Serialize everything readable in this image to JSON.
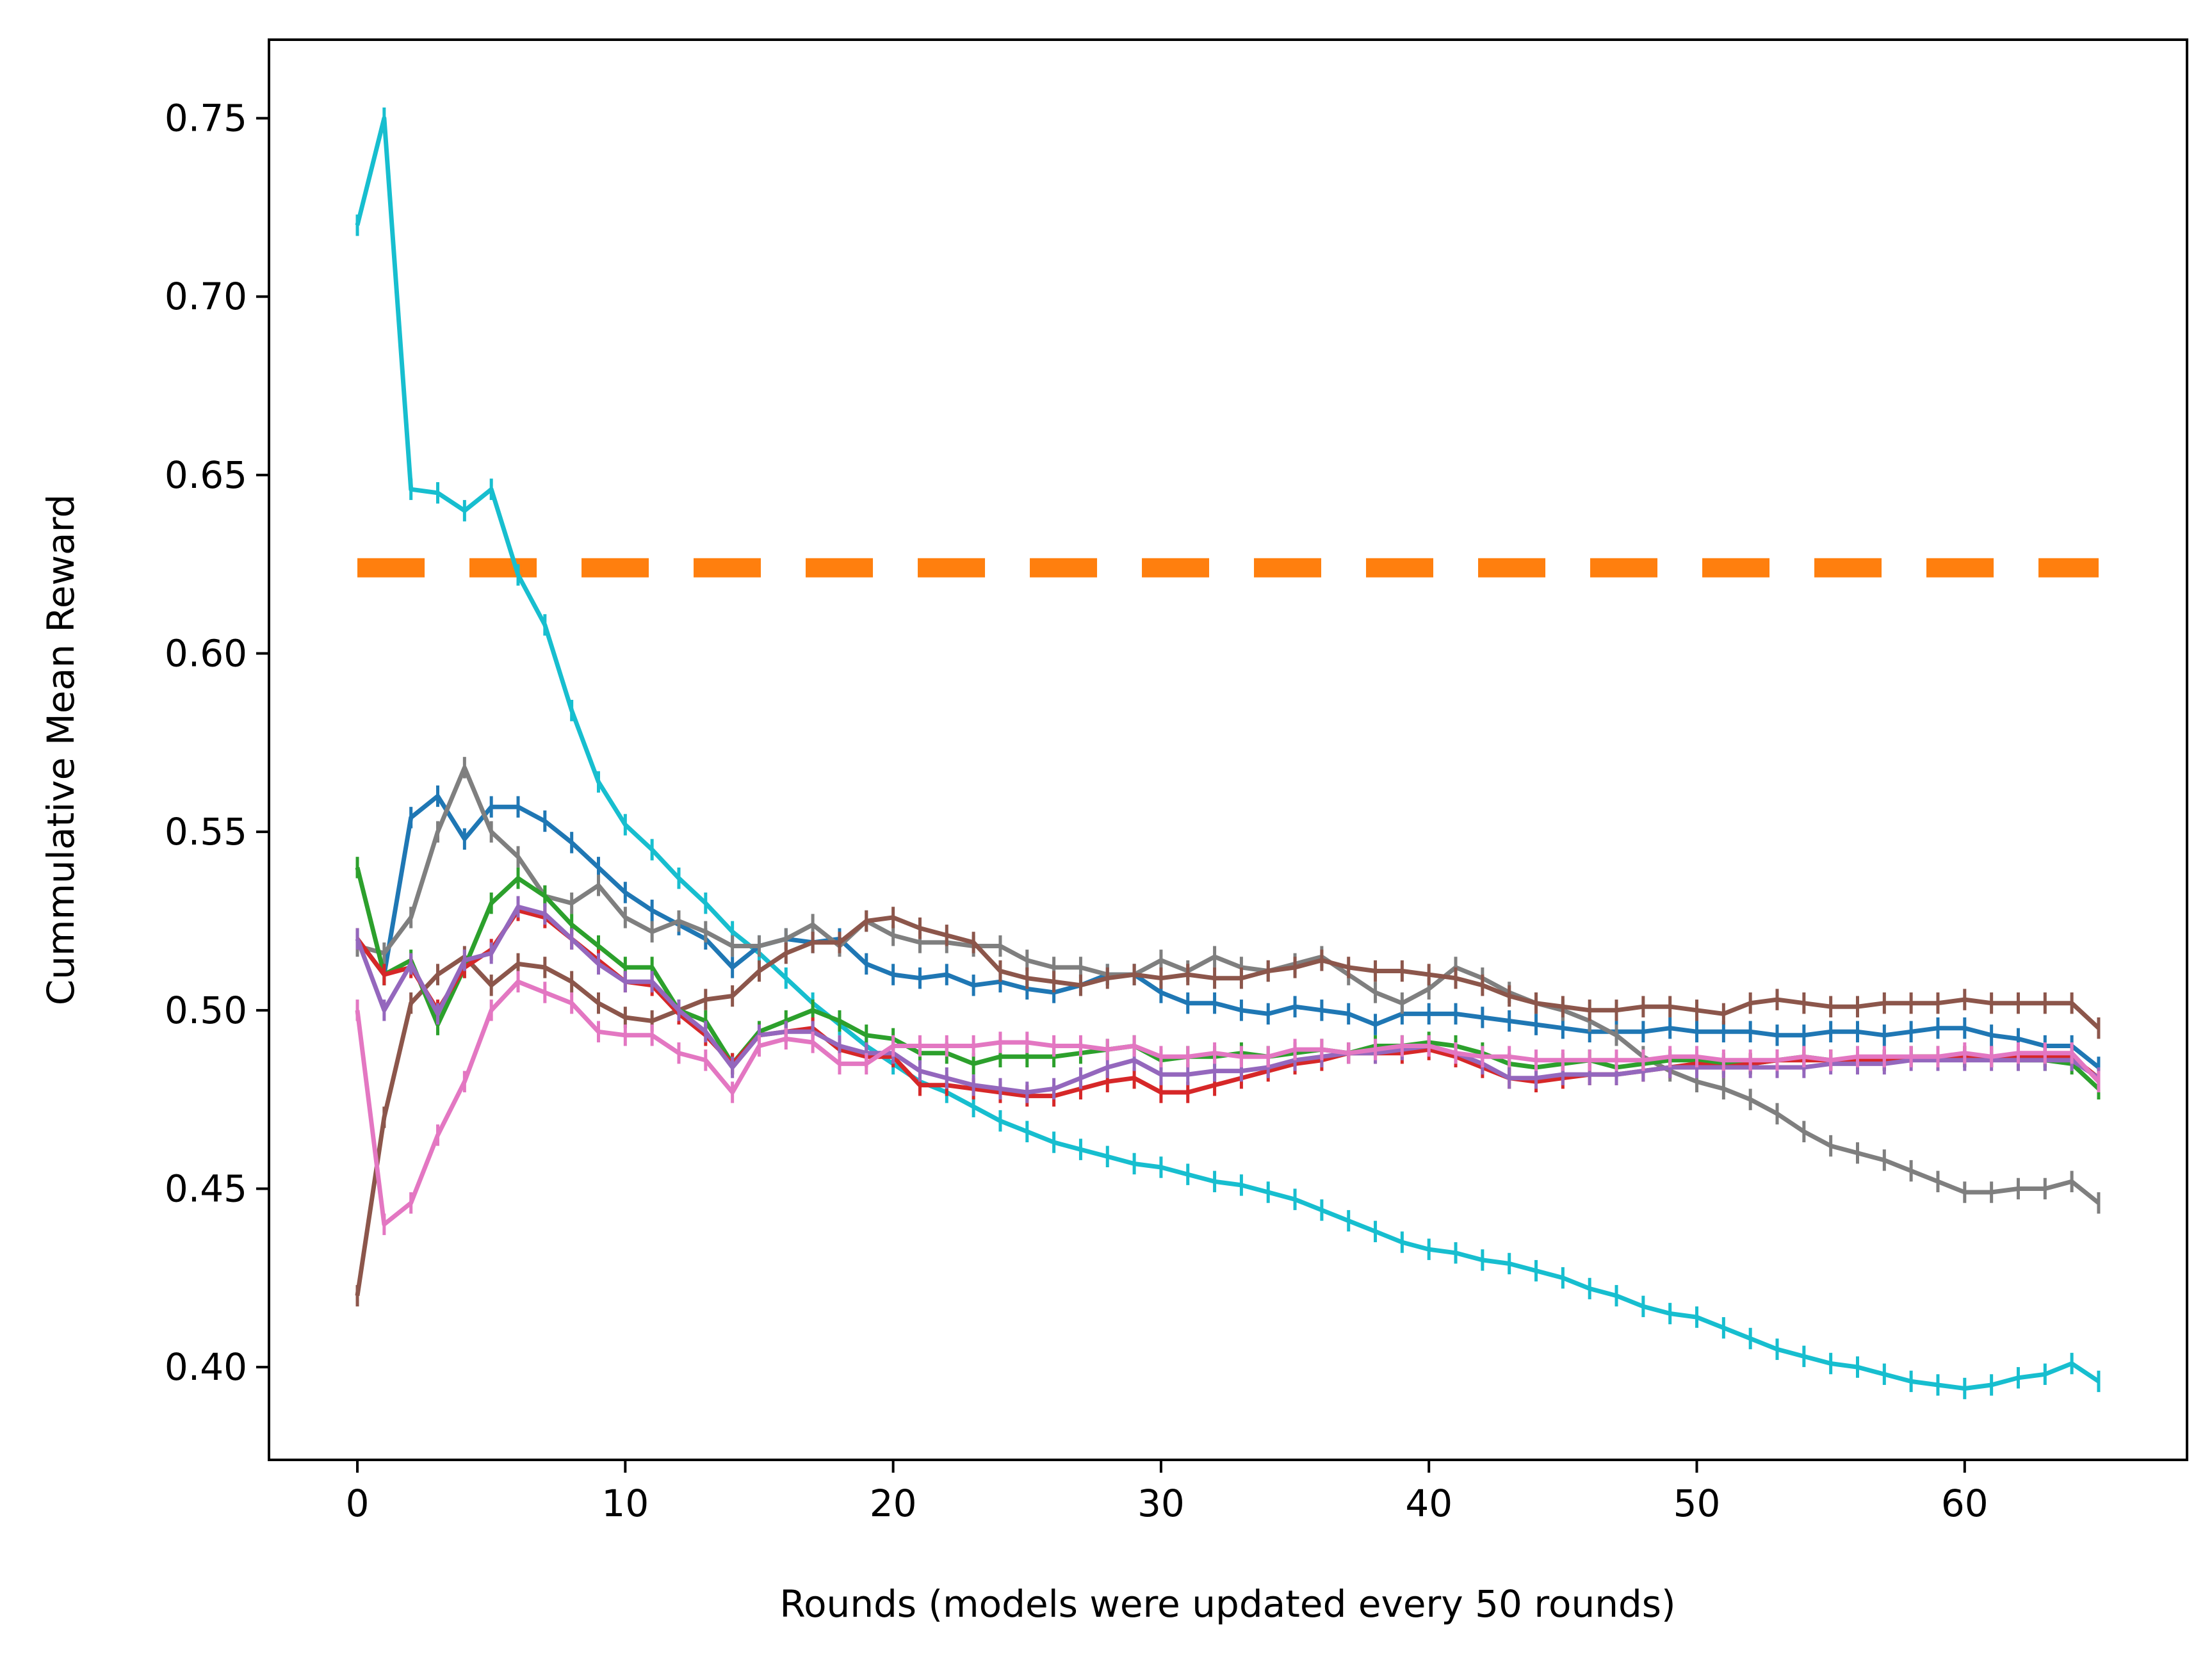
{
  "chart_data": {
    "type": "line",
    "xlabel": "Rounds (models were updated every 50 rounds)",
    "ylabel": "Cummulative Mean Reward",
    "xlim": [
      -3.3,
      68.3
    ],
    "ylim": [
      0.374,
      0.772
    ],
    "xticks": [
      0,
      10,
      20,
      30,
      40,
      50,
      60
    ],
    "yticks": [
      0.4,
      0.45,
      0.5,
      0.55,
      0.6,
      0.65,
      0.7,
      0.75
    ],
    "xtick_labels": [
      "0",
      "10",
      "20",
      "30",
      "40",
      "50",
      "60"
    ],
    "ytick_labels": [
      "0.40",
      "0.45",
      "0.50",
      "0.55",
      "0.60",
      "0.65",
      "0.70",
      "0.75"
    ],
    "grid": false,
    "error_bar": 0.003,
    "reference_line": {
      "y": 0.624,
      "x_range": [
        0,
        65
      ],
      "color": "#ff7f0e",
      "style": "dashed"
    },
    "series": [
      {
        "color": "#17becf",
        "values": [
          0.72,
          0.75,
          0.646,
          0.645,
          0.64,
          0.646,
          0.622,
          0.608,
          0.584,
          0.564,
          0.552,
          0.545,
          0.537,
          0.53,
          0.522,
          0.516,
          0.509,
          0.502,
          0.496,
          0.49,
          0.485,
          0.48,
          0.477,
          0.473,
          0.469,
          0.466,
          0.463,
          0.461,
          0.459,
          0.457,
          0.456,
          0.454,
          0.452,
          0.451,
          0.449,
          0.447,
          0.444,
          0.441,
          0.438,
          0.435,
          0.433,
          0.432,
          0.43,
          0.429,
          0.427,
          0.425,
          0.422,
          0.42,
          0.417,
          0.415,
          0.414,
          0.411,
          0.408,
          0.405,
          0.403,
          0.401,
          0.4,
          0.398,
          0.396,
          0.395,
          0.394,
          0.395,
          0.397,
          0.398,
          0.401,
          0.396
        ]
      },
      {
        "color": "#1f77b4",
        "values": [
          0.52,
          0.51,
          0.554,
          0.56,
          0.548,
          0.557,
          0.557,
          0.553,
          0.547,
          0.54,
          0.533,
          0.528,
          0.524,
          0.52,
          0.512,
          0.518,
          0.52,
          0.519,
          0.52,
          0.513,
          0.51,
          0.509,
          0.51,
          0.507,
          0.508,
          0.506,
          0.505,
          0.507,
          0.51,
          0.51,
          0.505,
          0.502,
          0.502,
          0.5,
          0.499,
          0.501,
          0.5,
          0.499,
          0.496,
          0.499,
          0.499,
          0.499,
          0.498,
          0.497,
          0.496,
          0.495,
          0.494,
          0.494,
          0.494,
          0.495,
          0.494,
          0.494,
          0.494,
          0.493,
          0.493,
          0.494,
          0.494,
          0.493,
          0.494,
          0.495,
          0.495,
          0.493,
          0.492,
          0.49,
          0.49,
          0.484
        ]
      },
      {
        "color": "#7f7f7f",
        "values": [
          0.518,
          0.516,
          0.526,
          0.55,
          0.568,
          0.55,
          0.543,
          0.532,
          0.53,
          0.535,
          0.526,
          0.522,
          0.525,
          0.522,
          0.518,
          0.518,
          0.52,
          0.524,
          0.518,
          0.525,
          0.521,
          0.519,
          0.519,
          0.518,
          0.518,
          0.514,
          0.512,
          0.512,
          0.51,
          0.51,
          0.514,
          0.511,
          0.515,
          0.512,
          0.511,
          0.513,
          0.515,
          0.51,
          0.505,
          0.502,
          0.506,
          0.512,
          0.509,
          0.505,
          0.502,
          0.5,
          0.497,
          0.493,
          0.487,
          0.483,
          0.48,
          0.478,
          0.475,
          0.471,
          0.466,
          0.462,
          0.46,
          0.458,
          0.455,
          0.452,
          0.449,
          0.449,
          0.45,
          0.45,
          0.452,
          0.446
        ]
      },
      {
        "color": "#8c564b",
        "values": [
          0.42,
          0.47,
          0.502,
          0.51,
          0.515,
          0.507,
          0.513,
          0.512,
          0.508,
          0.502,
          0.498,
          0.497,
          0.5,
          0.503,
          0.504,
          0.511,
          0.516,
          0.519,
          0.519,
          0.525,
          0.526,
          0.523,
          0.521,
          0.519,
          0.511,
          0.509,
          0.508,
          0.507,
          0.509,
          0.51,
          0.509,
          0.51,
          0.509,
          0.509,
          0.511,
          0.512,
          0.514,
          0.512,
          0.511,
          0.511,
          0.51,
          0.509,
          0.507,
          0.504,
          0.502,
          0.501,
          0.5,
          0.5,
          0.501,
          0.501,
          0.5,
          0.499,
          0.502,
          0.503,
          0.502,
          0.501,
          0.501,
          0.502,
          0.502,
          0.502,
          0.503,
          0.502,
          0.502,
          0.502,
          0.502,
          0.495
        ]
      },
      {
        "color": "#2ca02c",
        "values": [
          0.54,
          0.51,
          0.514,
          0.496,
          0.512,
          0.53,
          0.537,
          0.532,
          0.524,
          0.518,
          0.512,
          0.512,
          0.5,
          0.497,
          0.485,
          0.494,
          0.497,
          0.5,
          0.497,
          0.493,
          0.492,
          0.488,
          0.488,
          0.485,
          0.487,
          0.487,
          0.487,
          0.488,
          0.489,
          0.49,
          0.486,
          0.487,
          0.487,
          0.488,
          0.487,
          0.488,
          0.489,
          0.488,
          0.49,
          0.49,
          0.491,
          0.49,
          0.488,
          0.485,
          0.484,
          0.485,
          0.486,
          0.484,
          0.485,
          0.486,
          0.486,
          0.485,
          0.485,
          0.486,
          0.487,
          0.486,
          0.486,
          0.486,
          0.487,
          0.487,
          0.487,
          0.487,
          0.486,
          0.486,
          0.485,
          0.478
        ]
      },
      {
        "color": "#d62728",
        "values": [
          0.52,
          0.51,
          0.512,
          0.5,
          0.512,
          0.517,
          0.528,
          0.526,
          0.52,
          0.514,
          0.508,
          0.507,
          0.499,
          0.493,
          0.485,
          0.493,
          0.494,
          0.495,
          0.489,
          0.487,
          0.487,
          0.479,
          0.479,
          0.478,
          0.477,
          0.476,
          0.476,
          0.478,
          0.48,
          0.481,
          0.477,
          0.477,
          0.479,
          0.481,
          0.483,
          0.485,
          0.486,
          0.488,
          0.488,
          0.488,
          0.489,
          0.487,
          0.484,
          0.481,
          0.48,
          0.481,
          0.482,
          0.482,
          0.483,
          0.484,
          0.485,
          0.484,
          0.485,
          0.486,
          0.486,
          0.486,
          0.486,
          0.486,
          0.487,
          0.487,
          0.487,
          0.487,
          0.487,
          0.487,
          0.487,
          0.481
        ]
      },
      {
        "color": "#9467bd",
        "values": [
          0.52,
          0.5,
          0.513,
          0.499,
          0.514,
          0.516,
          0.529,
          0.527,
          0.52,
          0.513,
          0.508,
          0.508,
          0.5,
          0.494,
          0.484,
          0.493,
          0.494,
          0.494,
          0.49,
          0.488,
          0.488,
          0.483,
          0.481,
          0.479,
          0.478,
          0.477,
          0.478,
          0.481,
          0.484,
          0.486,
          0.482,
          0.482,
          0.483,
          0.483,
          0.484,
          0.486,
          0.487,
          0.488,
          0.488,
          0.489,
          0.49,
          0.488,
          0.485,
          0.481,
          0.481,
          0.482,
          0.482,
          0.482,
          0.483,
          0.484,
          0.484,
          0.484,
          0.484,
          0.484,
          0.484,
          0.485,
          0.485,
          0.485,
          0.486,
          0.486,
          0.486,
          0.486,
          0.486,
          0.486,
          0.486,
          0.481
        ]
      },
      {
        "color": "#e377c2",
        "values": [
          0.5,
          0.44,
          0.446,
          0.465,
          0.48,
          0.5,
          0.508,
          0.505,
          0.502,
          0.494,
          0.493,
          0.493,
          0.488,
          0.486,
          0.477,
          0.49,
          0.492,
          0.491,
          0.485,
          0.485,
          0.49,
          0.49,
          0.49,
          0.49,
          0.491,
          0.491,
          0.49,
          0.49,
          0.489,
          0.49,
          0.487,
          0.487,
          0.488,
          0.487,
          0.487,
          0.489,
          0.489,
          0.488,
          0.489,
          0.49,
          0.49,
          0.488,
          0.487,
          0.487,
          0.486,
          0.486,
          0.486,
          0.486,
          0.486,
          0.487,
          0.487,
          0.486,
          0.486,
          0.486,
          0.487,
          0.486,
          0.487,
          0.487,
          0.487,
          0.487,
          0.488,
          0.487,
          0.488,
          0.488,
          0.488,
          0.48
        ]
      }
    ]
  }
}
